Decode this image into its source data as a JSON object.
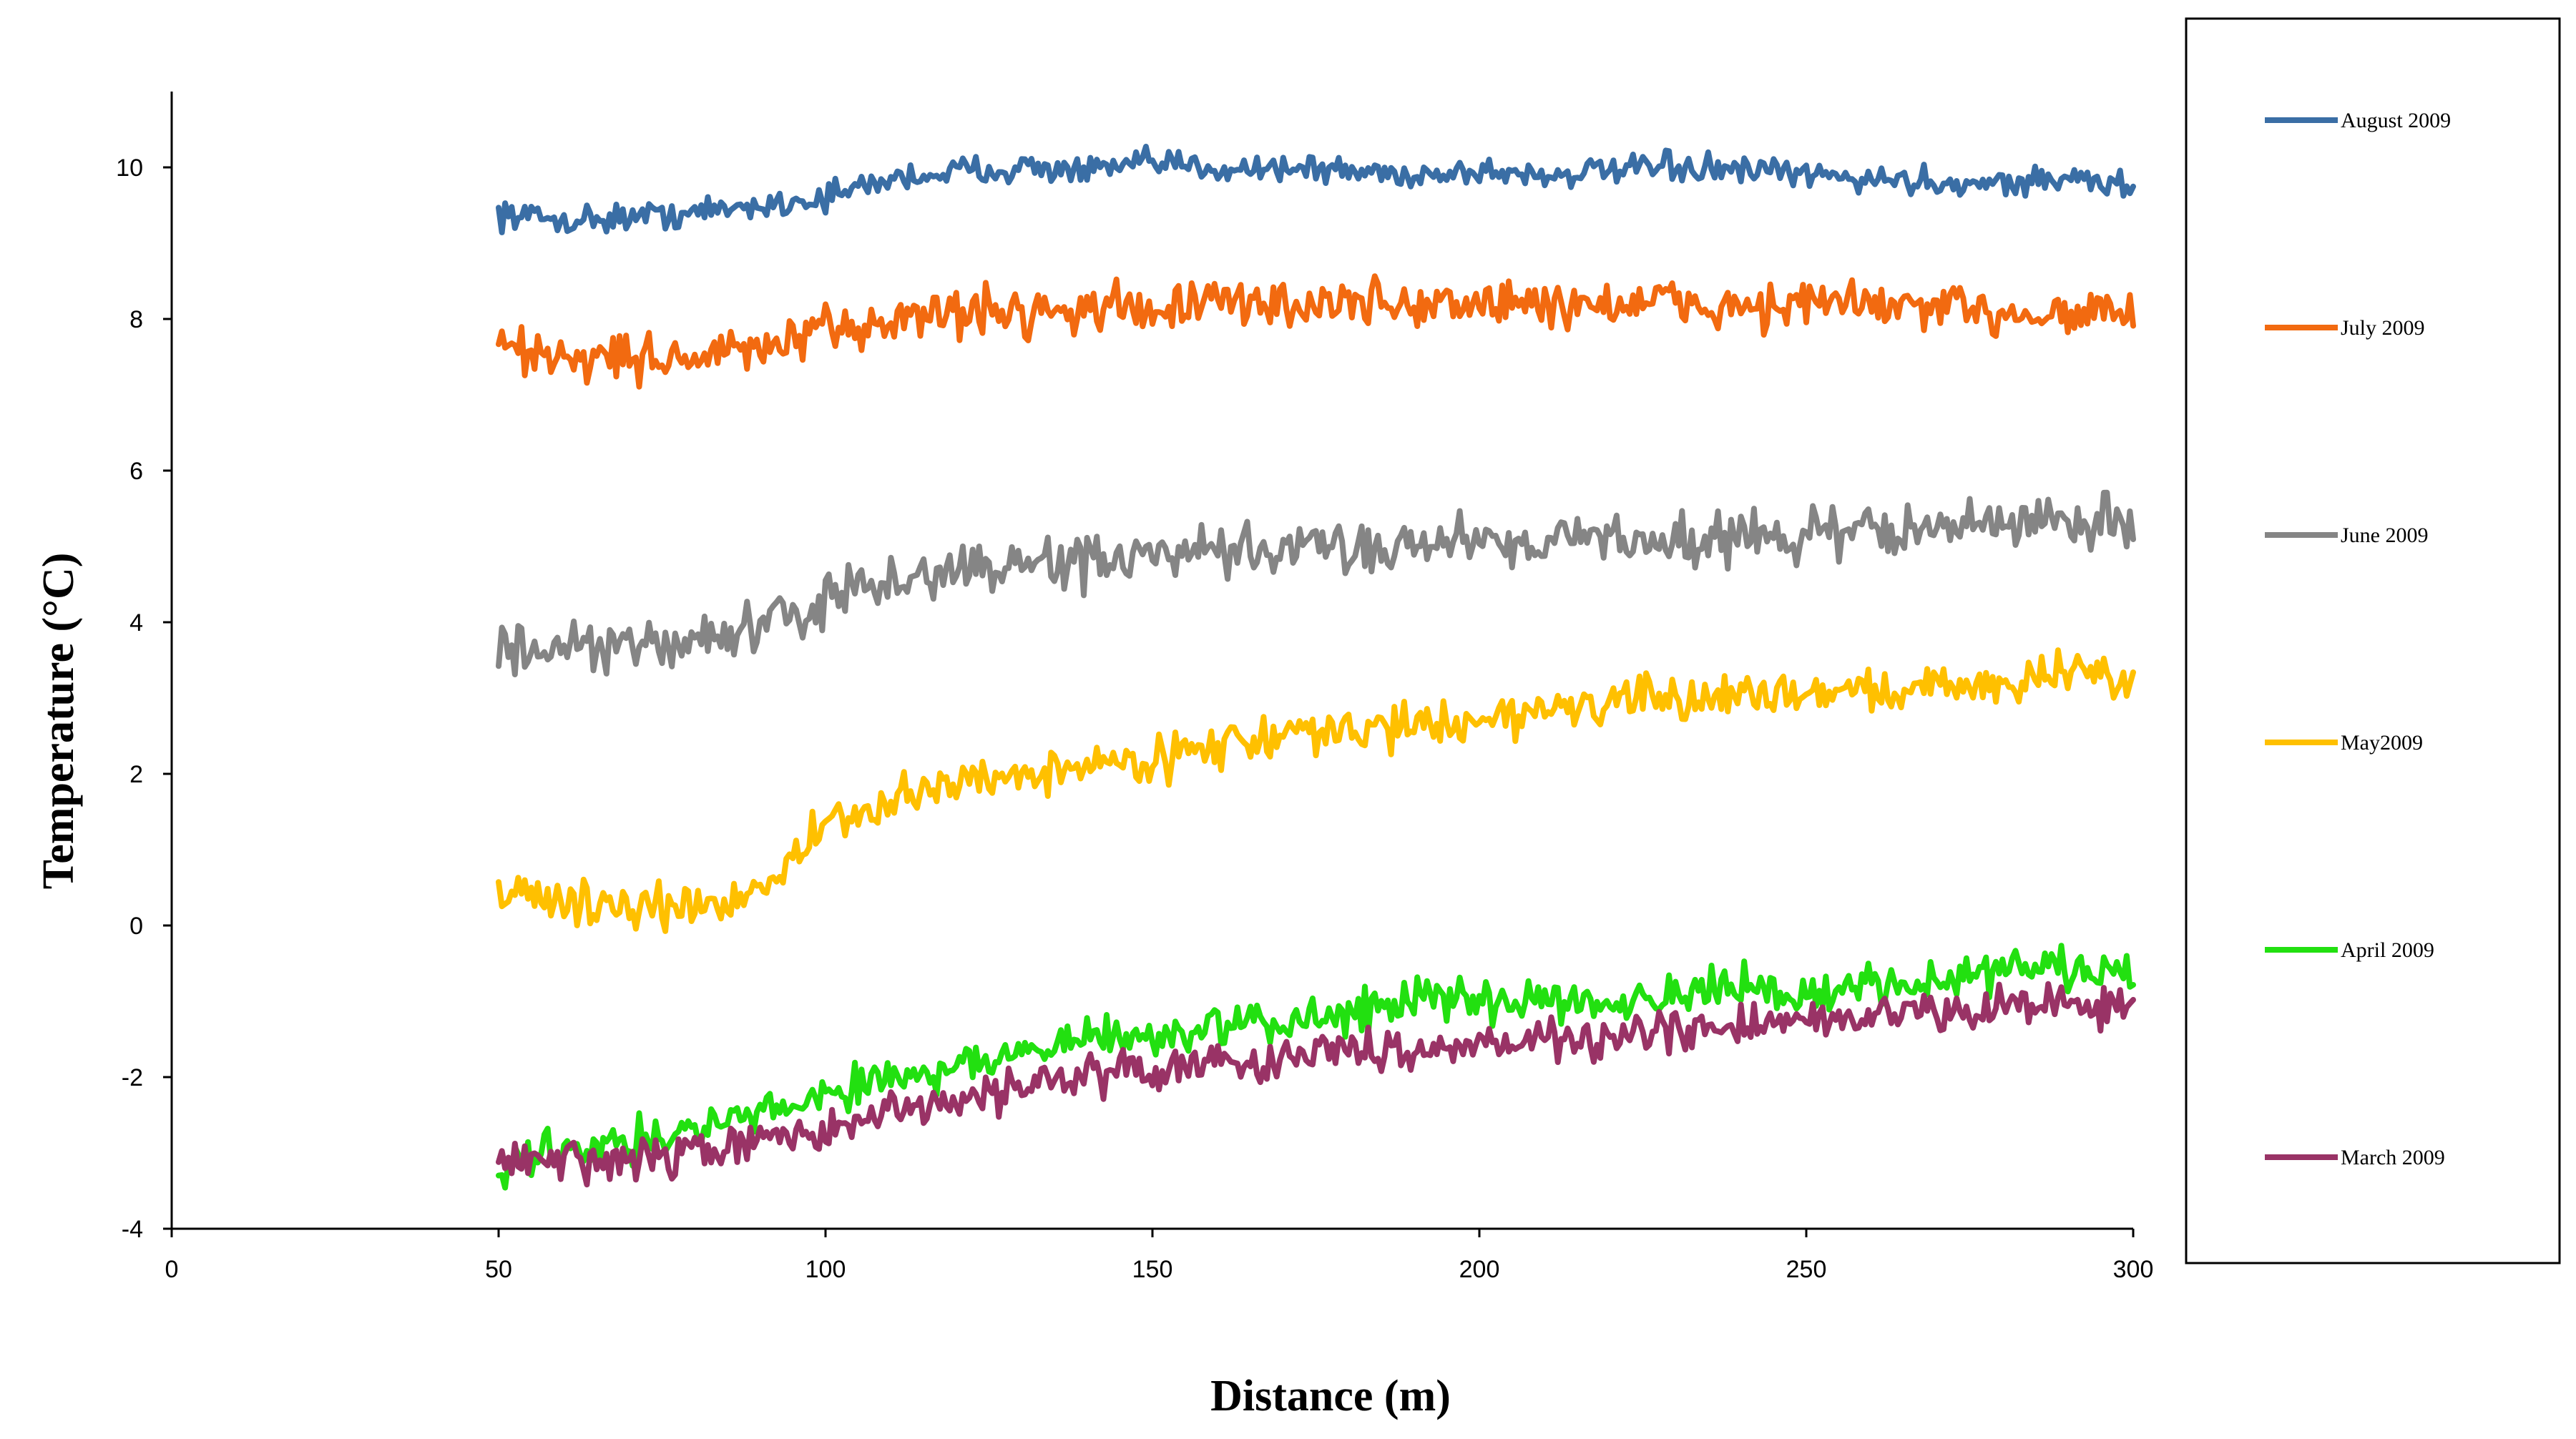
{
  "chart_data": {
    "type": "line",
    "title": "",
    "xlabel": "Distance (m)",
    "ylabel": "Temperature (°C)",
    "xlim": [
      0,
      300
    ],
    "ylim": [
      -4,
      11
    ],
    "xticks": [
      0,
      50,
      100,
      150,
      200,
      250,
      300
    ],
    "yticks": [
      -4,
      -2,
      0,
      2,
      4,
      6,
      8,
      10
    ],
    "x_tick_labels": [
      "0",
      "50",
      "100",
      "150",
      "200",
      "250",
      "300"
    ],
    "y_tick_labels": [
      "-4",
      "-2",
      "0",
      "2",
      "4",
      "6",
      "8",
      "10"
    ],
    "grid": false,
    "legend_position": "right",
    "x": [
      50,
      60,
      70,
      80,
      90,
      100,
      110,
      120,
      130,
      140,
      150,
      160,
      170,
      180,
      190,
      200,
      210,
      220,
      230,
      240,
      250,
      260,
      270,
      280,
      290,
      300
    ],
    "series": [
      {
        "name": "August 2009",
        "color": "#3A6EA5",
        "values": [
          9.4,
          9.3,
          9.35,
          9.4,
          9.5,
          9.6,
          9.85,
          9.95,
          10.0,
          9.95,
          10.05,
          10.0,
          10.0,
          9.95,
          9.9,
          9.95,
          9.9,
          9.95,
          10.0,
          9.95,
          9.9,
          9.85,
          9.8,
          9.8,
          9.85,
          9.75
        ]
      },
      {
        "name": "July 2009",
        "color": "#F26A10",
        "values": [
          7.6,
          7.5,
          7.5,
          7.5,
          7.6,
          7.8,
          8.0,
          8.1,
          8.1,
          8.15,
          8.15,
          8.2,
          8.2,
          8.2,
          8.2,
          8.2,
          8.2,
          8.2,
          8.2,
          8.15,
          8.2,
          8.2,
          8.1,
          8.1,
          8.1,
          8.1
        ]
      },
      {
        "name": "June 2009",
        "color": "#858585",
        "values": [
          3.6,
          3.6,
          3.65,
          3.8,
          3.9,
          4.3,
          4.5,
          4.7,
          4.75,
          4.8,
          4.85,
          4.9,
          4.95,
          5.0,
          5.05,
          5.1,
          5.1,
          5.1,
          5.1,
          5.1,
          5.15,
          5.2,
          5.25,
          5.3,
          5.35,
          5.3
        ]
      },
      {
        "name": "May2009",
        "color": "#FFC000",
        "values": [
          0.5,
          0.3,
          0.25,
          0.2,
          0.5,
          1.3,
          1.6,
          1.9,
          2.0,
          2.1,
          2.2,
          2.4,
          2.5,
          2.55,
          2.65,
          2.7,
          2.85,
          2.95,
          2.95,
          3.05,
          3.1,
          3.1,
          3.15,
          3.2,
          3.35,
          3.2
        ]
      },
      {
        "name": "April 2009",
        "color": "#22E010",
        "values": [
          -3.2,
          -2.9,
          -2.85,
          -2.7,
          -2.5,
          -2.2,
          -2.0,
          -1.85,
          -1.7,
          -1.5,
          -1.45,
          -1.35,
          -1.3,
          -1.1,
          -1.0,
          -1.0,
          -0.95,
          -0.95,
          -0.95,
          -0.85,
          -0.9,
          -0.8,
          -0.7,
          -0.6,
          -0.55,
          -0.7
        ]
      },
      {
        "name": "March 2009",
        "color": "#993366",
        "values": [
          -3.05,
          -3.15,
          -3.1,
          -3.0,
          -2.85,
          -2.7,
          -2.5,
          -2.3,
          -2.1,
          -1.95,
          -1.9,
          -1.8,
          -1.75,
          -1.65,
          -1.6,
          -1.55,
          -1.5,
          -1.5,
          -1.4,
          -1.35,
          -1.25,
          -1.2,
          -1.15,
          -1.05,
          -1.0,
          -1.15
        ]
      }
    ]
  }
}
